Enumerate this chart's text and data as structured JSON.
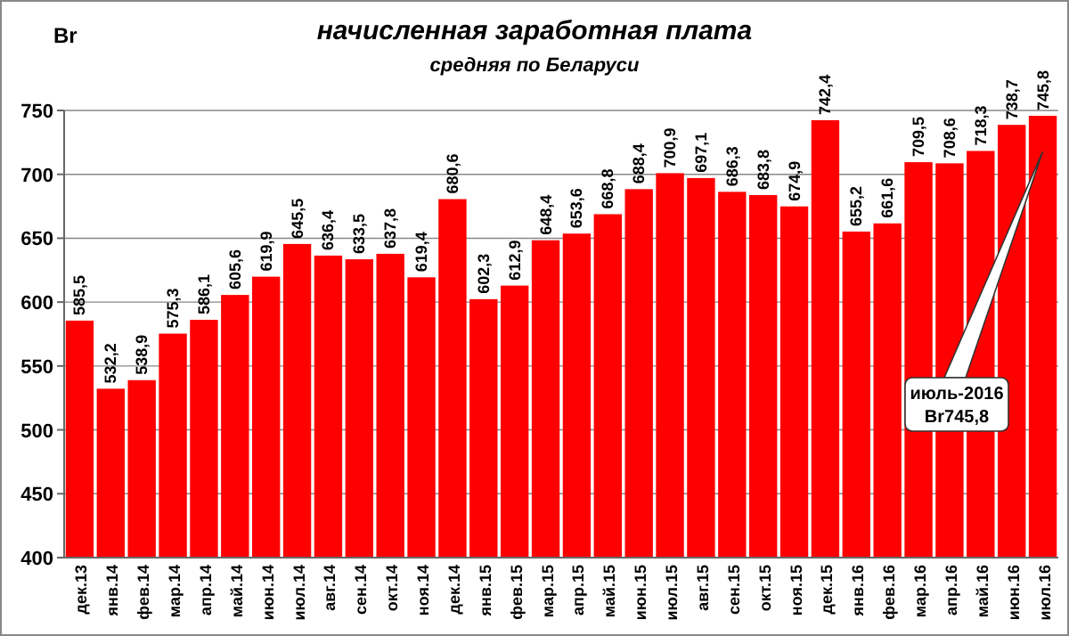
{
  "chart_data": {
    "type": "bar",
    "title": "начисленная заработная плата",
    "subtitle": "средняя по Беларуси",
    "ylabel": "Br",
    "categories": [
      "дек.13",
      "янв.14",
      "фев.14",
      "мар.14",
      "апр.14",
      "май.14",
      "июн.14",
      "июл.14",
      "авг.14",
      "сен.14",
      "окт.14",
      "ноя.14",
      "дек.14",
      "янв.15",
      "фев.15",
      "мар.15",
      "апр.15",
      "май.15",
      "июн.15",
      "июл.15",
      "авг.15",
      "сен.15",
      "окт.15",
      "ноя.15",
      "дек.15",
      "янв.16",
      "фев.16",
      "мар.16",
      "апр.16",
      "май.16",
      "июн.16",
      "июл.16"
    ],
    "values": [
      585.5,
      532.2,
      538.9,
      575.3,
      586.1,
      605.6,
      619.9,
      645.5,
      636.4,
      633.5,
      637.8,
      619.4,
      680.6,
      602.3,
      612.9,
      648.4,
      653.6,
      668.8,
      688.4,
      700.9,
      697.1,
      686.3,
      683.8,
      674.9,
      742.4,
      655.2,
      661.6,
      709.5,
      708.6,
      718.3,
      738.7,
      745.8
    ],
    "value_labels": [
      "585,5",
      "532,2",
      "538,9",
      "575,3",
      "586,1",
      "605,6",
      "619,9",
      "645,5",
      "636,4",
      "633,5",
      "637,8",
      "619,4",
      "680,6",
      "602,3",
      "612,9",
      "648,4",
      "653,6",
      "668,8",
      "688,4",
      "700,9",
      "697,1",
      "686,3",
      "683,8",
      "674,9",
      "742,4",
      "655,2",
      "661,6",
      "709,5",
      "708,6",
      "718,3",
      "738,7",
      "745,8"
    ],
    "color": "#ff0000",
    "ylim": [
      400,
      750
    ],
    "yticks": [
      400,
      450,
      500,
      550,
      600,
      650,
      700,
      750
    ],
    "grid": "y",
    "annotations": [
      "июль-2016\nBr745,8"
    ]
  }
}
